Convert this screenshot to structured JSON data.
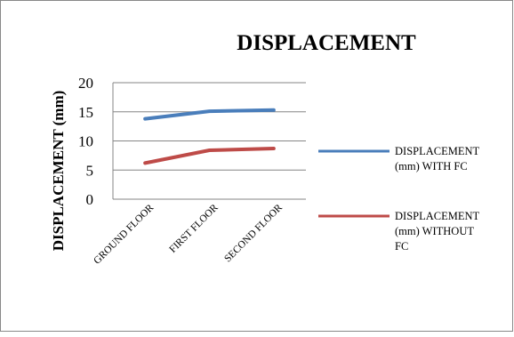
{
  "chart_data": {
    "type": "line",
    "title": "DISPLACEMENT",
    "xlabel": "",
    "ylabel": "DISPLACEMENT (mm)",
    "categories": [
      "GROUND FLOOR",
      "FIRST FLOOR",
      "SECOND FLOOR"
    ],
    "ylim": [
      0,
      20
    ],
    "yticks": [
      0,
      5,
      10,
      15,
      20
    ],
    "grid": "horizontal",
    "legend_position": "right",
    "series": [
      {
        "name_lines": [
          "DISPLACEMENT",
          "(mm)  WITH FC"
        ],
        "values": [
          13.8,
          15.1,
          15.3
        ],
        "color": "#4a7ebb"
      },
      {
        "name_lines": [
          "DISPLACEMENT",
          "(mm)  WITHOUT",
          "FC"
        ],
        "values": [
          6.2,
          8.4,
          8.7
        ],
        "color": "#be4b48"
      }
    ]
  }
}
